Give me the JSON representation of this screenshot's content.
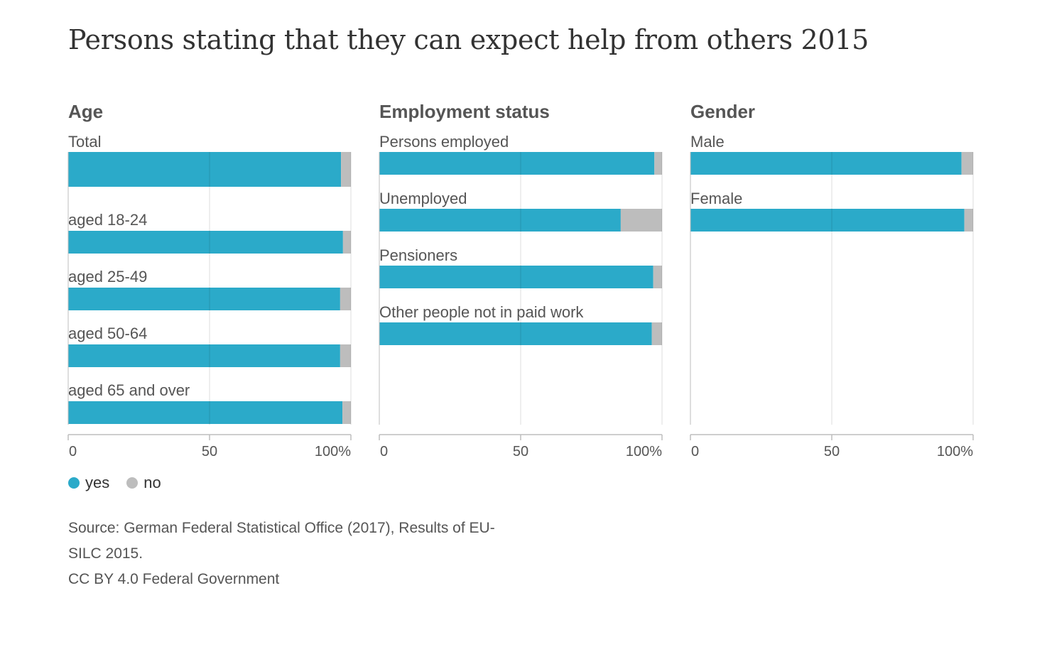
{
  "title": "Persons stating that they can expect help from others 2015",
  "colors": {
    "yes": "#2BAAC9",
    "no": "#BDBDBD",
    "grid": "#D6D6D6",
    "axis": "#BDBDBD"
  },
  "legend": [
    {
      "label": "yes",
      "color": "#2BAAC9"
    },
    {
      "label": "no",
      "color": "#BDBDBD"
    }
  ],
  "source_lines": [
    "Source: German Federal Statistical Office (2017), Results of EU-",
    "SILC 2015.",
    "CC BY 4.0 Federal Government"
  ],
  "chart_data": [
    {
      "type": "bar",
      "orientation": "horizontal",
      "stacked": true,
      "title": "Age",
      "categories": [
        "Total",
        "aged 18-24",
        "aged 25-49",
        "aged 50-64",
        "aged 65 and over"
      ],
      "series": [
        {
          "name": "yes",
          "values": [
            96.5,
            97.2,
            96.2,
            96.2,
            97.0
          ]
        },
        {
          "name": "no",
          "values": [
            3.5,
            2.8,
            3.8,
            3.8,
            3.0
          ]
        }
      ],
      "xlim": [
        0,
        100
      ],
      "x_ticks": [
        "0",
        "50",
        "100%"
      ],
      "grid": true,
      "legend_position": "bottom-left"
    },
    {
      "type": "bar",
      "orientation": "horizontal",
      "stacked": true,
      "title": "Employment status",
      "categories": [
        "Persons employed",
        "Unemployed",
        "Pensioners",
        "Other people not in paid work"
      ],
      "series": [
        {
          "name": "yes",
          "values": [
            97.3,
            85.4,
            96.9,
            96.4
          ]
        },
        {
          "name": "no",
          "values": [
            2.7,
            14.6,
            3.1,
            3.6
          ]
        }
      ],
      "xlim": [
        0,
        100
      ],
      "x_ticks": [
        "0",
        "50",
        "100%"
      ],
      "grid": true
    },
    {
      "type": "bar",
      "orientation": "horizontal",
      "stacked": true,
      "title": "Gender",
      "categories": [
        "Male",
        "Female"
      ],
      "series": [
        {
          "name": "yes",
          "values": [
            95.9,
            96.9
          ]
        },
        {
          "name": "no",
          "values": [
            4.1,
            3.1
          ]
        }
      ],
      "xlim": [
        0,
        100
      ],
      "x_ticks": [
        "0",
        "50",
        "100%"
      ],
      "grid": true
    }
  ]
}
